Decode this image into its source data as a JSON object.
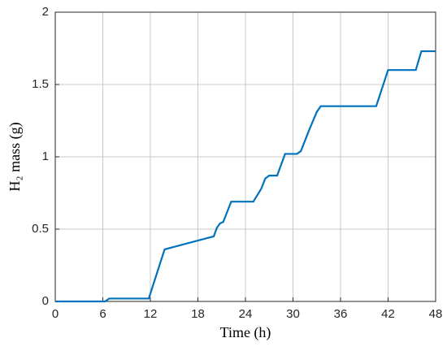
{
  "chart_data": {
    "type": "line",
    "x_label": "Time (h)",
    "y_label": "H₂ mass (g)",
    "x": [
      0,
      6.3,
      6.8,
      11.8,
      13.8,
      20,
      20.4,
      20.8,
      21.2,
      22.2,
      25,
      26,
      26.5,
      27,
      28,
      29,
      30.5,
      31,
      32,
      33,
      33.5,
      40.5,
      42,
      45.5,
      46.2,
      48
    ],
    "series": [
      {
        "color": "#0072bd",
        "values": [
          0,
          0,
          0.02,
          0.02,
          0.36,
          0.45,
          0.51,
          0.54,
          0.55,
          0.69,
          0.69,
          0.78,
          0.85,
          0.87,
          0.87,
          1.02,
          1.02,
          1.04,
          1.18,
          1.31,
          1.35,
          1.35,
          1.6,
          1.6,
          1.73,
          1.73
        ]
      }
    ],
    "xlim": [
      0,
      48
    ],
    "xticks": [
      0,
      6,
      12,
      18,
      24,
      30,
      36,
      42,
      48
    ],
    "ylim": [
      0,
      2
    ],
    "yticks": [
      0,
      0.5,
      1,
      1.5,
      2
    ],
    "grid": true
  }
}
